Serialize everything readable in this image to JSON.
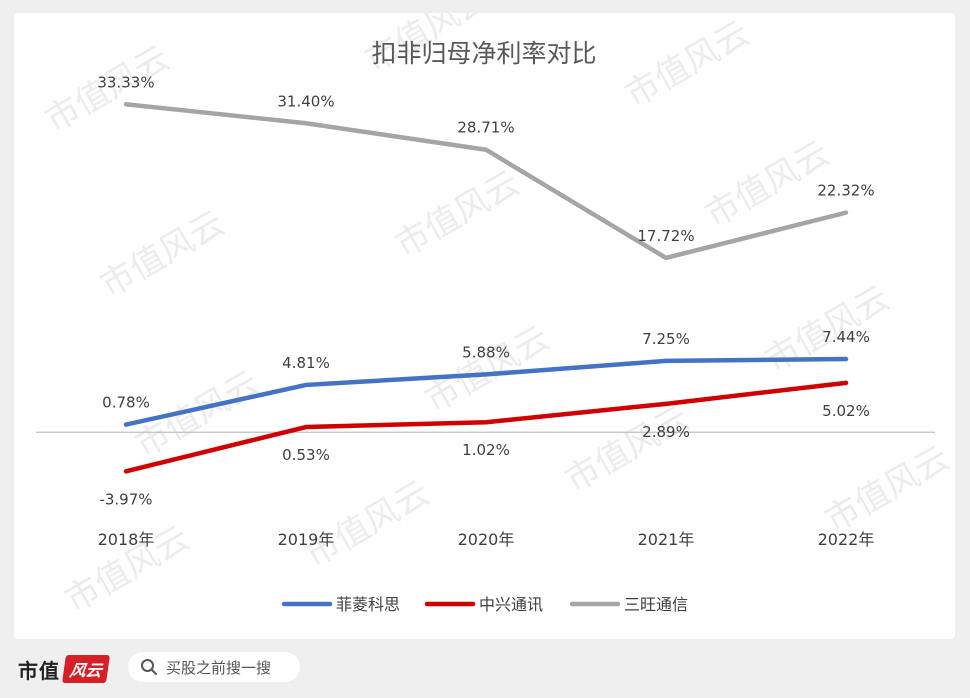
{
  "chart_data": {
    "type": "line",
    "title": "扣非归母净利率对比",
    "categories": [
      "2018年",
      "2019年",
      "2020年",
      "2021年",
      "2022年"
    ],
    "ylim": [
      -8,
      36
    ],
    "xlabel": "",
    "ylabel": "",
    "grid": false,
    "legend_position": "bottom",
    "series": [
      {
        "name": "菲菱科思",
        "color": "#4472c4",
        "values": [
          0.78,
          4.81,
          5.88,
          7.25,
          7.44
        ],
        "labels": [
          "0.78%",
          "4.81%",
          "5.88%",
          "7.25%",
          "7.44%"
        ],
        "label_position": [
          "above",
          "above",
          "above",
          "above",
          "above"
        ]
      },
      {
        "name": "中兴通讯",
        "color": "#d00000",
        "values": [
          -3.97,
          0.53,
          1.02,
          2.89,
          5.02
        ],
        "labels": [
          "-3.97%",
          "0.53%",
          "1.02%",
          "2.89%",
          "5.02%"
        ],
        "label_position": [
          "below",
          "below",
          "below",
          "below",
          "below"
        ]
      },
      {
        "name": "三旺通信",
        "color": "#a5a5a5",
        "values": [
          33.33,
          31.4,
          28.71,
          17.72,
          22.32
        ],
        "labels": [
          "33.33%",
          "31.40%",
          "28.71%",
          "17.72%",
          "22.32%"
        ],
        "label_position": [
          "above",
          "above",
          "above",
          "above",
          "above"
        ]
      }
    ]
  },
  "watermark": "市值风云",
  "footer": {
    "brand": "市值",
    "brand_seal": "风云",
    "search_text": "买股之前搜一搜"
  },
  "colors": {
    "axis": "#bfbfbf",
    "text": "#404040",
    "title": "#595959",
    "background": "#efefef",
    "card": "#ffffff"
  }
}
